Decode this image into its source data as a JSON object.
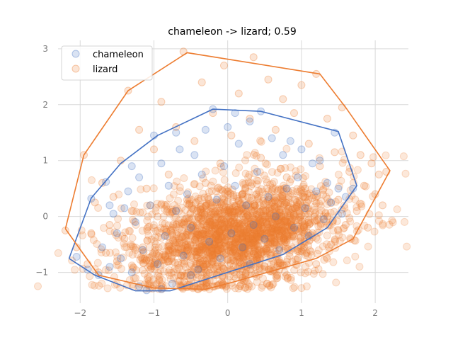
{
  "chart_data": {
    "type": "scatter",
    "title": "chameleon -> lizard; 0.59",
    "xlabel": "",
    "ylabel": "",
    "xlim": [
      -2.3,
      2.45
    ],
    "ylim": [
      -1.55,
      3.15
    ],
    "x_ticks": [
      -2,
      -1,
      0,
      1,
      2
    ],
    "y_ticks": [
      -1,
      0,
      1,
      2,
      3
    ],
    "x_tick_labels": [
      "−2",
      "−1",
      "0",
      "1",
      "2"
    ],
    "y_tick_labels": [
      "−1",
      "0",
      "1",
      "2",
      "3"
    ],
    "grid": true,
    "legend_position": "top-left",
    "series": [
      {
        "name": "chameleon",
        "color": "#4472c4",
        "points": [
          [
            -2.05,
            -0.72
          ],
          [
            -1.85,
            0.32
          ],
          [
            -1.75,
            -1.05
          ],
          [
            -1.7,
            -0.55
          ],
          [
            -1.65,
            0.62
          ],
          [
            -1.6,
            -0.9
          ],
          [
            -1.55,
            0.05
          ],
          [
            -1.5,
            -0.3
          ],
          [
            -1.45,
            -0.75
          ],
          [
            -1.4,
            0.15
          ],
          [
            -1.35,
            0.45
          ],
          [
            -1.3,
            -1.0
          ],
          [
            -1.25,
            -0.1
          ],
          [
            -1.2,
            0.7
          ],
          [
            -1.15,
            -0.6
          ],
          [
            -1.1,
            -1.32
          ],
          [
            -1.05,
            0.2
          ],
          [
            -1.0,
            1.45
          ],
          [
            -0.95,
            -0.85
          ],
          [
            -0.9,
            0.95
          ],
          [
            -0.85,
            -0.35
          ],
          [
            -0.8,
            0.55
          ],
          [
            -0.75,
            -1.2
          ],
          [
            -0.7,
            0.1
          ],
          [
            -0.65,
            1.2
          ],
          [
            -0.6,
            -0.7
          ],
          [
            -0.55,
            0.4
          ],
          [
            -0.5,
            -0.2
          ],
          [
            -0.45,
            1.1
          ],
          [
            -0.4,
            -0.95
          ],
          [
            -0.35,
            0.75
          ],
          [
            -0.3,
            1.55
          ],
          [
            -0.25,
            -0.45
          ],
          [
            -0.2,
            1.92
          ],
          [
            -0.15,
            0.3
          ],
          [
            -0.1,
            -0.75
          ],
          [
            -0.05,
            0.9
          ],
          [
            0.0,
            1.6
          ],
          [
            0.05,
            -0.3
          ],
          [
            0.1,
            0.55
          ],
          [
            0.15,
            1.3
          ],
          [
            0.2,
            -0.55
          ],
          [
            0.25,
            0.2
          ],
          [
            0.3,
            1.7
          ],
          [
            0.35,
            -0.15
          ],
          [
            0.4,
            0.8
          ],
          [
            0.45,
            1.88
          ],
          [
            0.5,
            -0.4
          ],
          [
            0.55,
            0.35
          ],
          [
            0.6,
            1.4
          ],
          [
            0.65,
            0.0
          ],
          [
            0.7,
            -0.6
          ],
          [
            0.75,
            1.1
          ],
          [
            0.8,
            0.5
          ],
          [
            0.85,
            1.35
          ],
          [
            0.9,
            -0.2
          ],
          [
            0.95,
            0.7
          ],
          [
            1.0,
            1.2
          ],
          [
            1.05,
            0.15
          ],
          [
            1.1,
            -0.35
          ],
          [
            1.15,
            0.95
          ],
          [
            1.2,
            0.45
          ],
          [
            1.25,
            1.0
          ],
          [
            1.3,
            -0.05
          ],
          [
            1.35,
            0.6
          ],
          [
            1.4,
            0.25
          ],
          [
            1.45,
            1.5
          ],
          [
            1.5,
            0.5
          ],
          [
            1.55,
            0.05
          ],
          [
            1.6,
            0.35
          ],
          [
            1.7,
            0.5
          ],
          [
            -1.2,
            -1.25
          ],
          [
            -0.9,
            -1.3
          ],
          [
            -0.5,
            -1.05
          ],
          [
            0.3,
            -0.85
          ],
          [
            -1.9,
            -0.95
          ],
          [
            -1.6,
            0.2
          ],
          [
            -1.3,
            0.9
          ],
          [
            -0.7,
            1.5
          ],
          [
            0.1,
            1.85
          ]
        ],
        "hull": [
          [
            -2.15,
            -0.75
          ],
          [
            -1.85,
            0.33
          ],
          [
            -1.45,
            0.95
          ],
          [
            -0.95,
            1.45
          ],
          [
            -0.2,
            1.92
          ],
          [
            0.45,
            1.88
          ],
          [
            1.5,
            1.52
          ],
          [
            1.75,
            0.55
          ],
          [
            1.35,
            -0.2
          ],
          [
            0.75,
            -0.68
          ],
          [
            -0.78,
            -1.33
          ],
          [
            -1.25,
            -1.33
          ],
          [
            -1.8,
            -1.05
          ],
          [
            -2.15,
            -0.75
          ]
        ]
      },
      {
        "name": "lizard",
        "color": "#ed7d31",
        "points": [
          [
            -2.2,
            -0.25
          ],
          [
            -2.05,
            -0.55
          ],
          [
            -1.95,
            1.1
          ],
          [
            -1.9,
            -0.85
          ],
          [
            -1.85,
            -0.3
          ],
          [
            -1.8,
            0.25
          ],
          [
            -1.75,
            -1.0
          ],
          [
            -1.7,
            0.6
          ],
          [
            -1.65,
            -0.65
          ],
          [
            -1.6,
            -0.15
          ],
          [
            -1.55,
            0.35
          ],
          [
            -1.5,
            -0.8
          ],
          [
            -1.45,
            1.0
          ],
          [
            -1.4,
            -0.4
          ],
          [
            -1.35,
            2.25
          ],
          [
            -1.3,
            0.1
          ],
          [
            -1.25,
            -1.1
          ],
          [
            -1.2,
            1.55
          ],
          [
            -1.15,
            -0.55
          ],
          [
            -1.1,
            0.5
          ],
          [
            -1.05,
            -0.95
          ],
          [
            -1.0,
            1.2
          ],
          [
            -0.95,
            0.0
          ],
          [
            -0.9,
            2.05
          ],
          [
            -0.85,
            -0.7
          ],
          [
            -0.8,
            0.75
          ],
          [
            -0.75,
            -0.3
          ],
          [
            -0.7,
            1.6
          ],
          [
            -0.65,
            -1.15
          ],
          [
            -0.6,
            2.95
          ],
          [
            -0.55,
            0.3
          ],
          [
            -0.5,
            -0.85
          ],
          [
            -0.45,
            1.35
          ],
          [
            -0.4,
            -0.15
          ],
          [
            -0.35,
            2.4
          ],
          [
            -0.3,
            0.6
          ],
          [
            -0.25,
            -0.6
          ],
          [
            -0.2,
            1.85
          ],
          [
            -0.15,
            -1.05
          ],
          [
            -0.1,
            0.95
          ],
          [
            -0.05,
            2.7
          ],
          [
            0.0,
            -0.35
          ],
          [
            0.05,
            1.45
          ],
          [
            0.1,
            -0.8
          ],
          [
            0.15,
            2.2
          ],
          [
            0.2,
            0.4
          ],
          [
            0.25,
            -0.5
          ],
          [
            0.3,
            1.75
          ],
          [
            0.35,
            2.85
          ],
          [
            0.4,
            -0.2
          ],
          [
            0.45,
            1.05
          ],
          [
            0.5,
            -0.9
          ],
          [
            0.55,
            2.45
          ],
          [
            0.6,
            0.25
          ],
          [
            0.65,
            1.55
          ],
          [
            0.7,
            -0.55
          ],
          [
            0.75,
            2.1
          ],
          [
            0.8,
            0.7
          ],
          [
            0.85,
            -0.1
          ],
          [
            0.9,
            1.85
          ],
          [
            0.95,
            -0.75
          ],
          [
            1.0,
            2.35
          ],
          [
            1.05,
            0.5
          ],
          [
            1.1,
            1.3
          ],
          [
            1.15,
            -0.3
          ],
          [
            1.2,
            2.55
          ],
          [
            1.25,
            0.9
          ],
          [
            1.3,
            0.0
          ],
          [
            1.35,
            1.75
          ],
          [
            1.4,
            -0.5
          ],
          [
            1.45,
            1.15
          ],
          [
            1.5,
            0.3
          ],
          [
            1.55,
            1.95
          ],
          [
            1.6,
            -0.15
          ],
          [
            1.65,
            0.8
          ],
          [
            1.7,
            1.45
          ],
          [
            1.75,
            0.1
          ],
          [
            1.8,
            1.1
          ],
          [
            1.85,
            0.55
          ],
          [
            1.9,
            -0.2
          ],
          [
            1.95,
            0.95
          ],
          [
            2.0,
            0.4
          ],
          [
            2.05,
            0.75
          ],
          [
            2.1,
            0.2
          ],
          [
            2.15,
            0.8
          ],
          [
            -0.9,
            -1.25
          ],
          [
            -0.4,
            -1.3
          ],
          [
            0.2,
            -1.1
          ],
          [
            0.7,
            -0.95
          ],
          [
            1.2,
            -0.85
          ]
        ],
        "hull": [
          [
            -2.2,
            -0.22
          ],
          [
            -1.95,
            1.1
          ],
          [
            -1.35,
            2.25
          ],
          [
            -0.55,
            2.93
          ],
          [
            1.25,
            2.55
          ],
          [
            1.6,
            1.95
          ],
          [
            2.2,
            0.82
          ],
          [
            1.7,
            -0.4
          ],
          [
            1.2,
            -0.75
          ],
          [
            0.0,
            -1.2
          ],
          [
            -0.3,
            -1.3
          ],
          [
            -1.0,
            -1.28
          ],
          [
            -1.75,
            -1.05
          ],
          [
            -2.2,
            -0.22
          ]
        ]
      }
    ],
    "cloud": {
      "center": [
        0.1,
        -0.35
      ],
      "spread": [
        0.75,
        0.45
      ],
      "tilt_deg": 20,
      "count": 2200,
      "color": "#ed7d31"
    }
  }
}
